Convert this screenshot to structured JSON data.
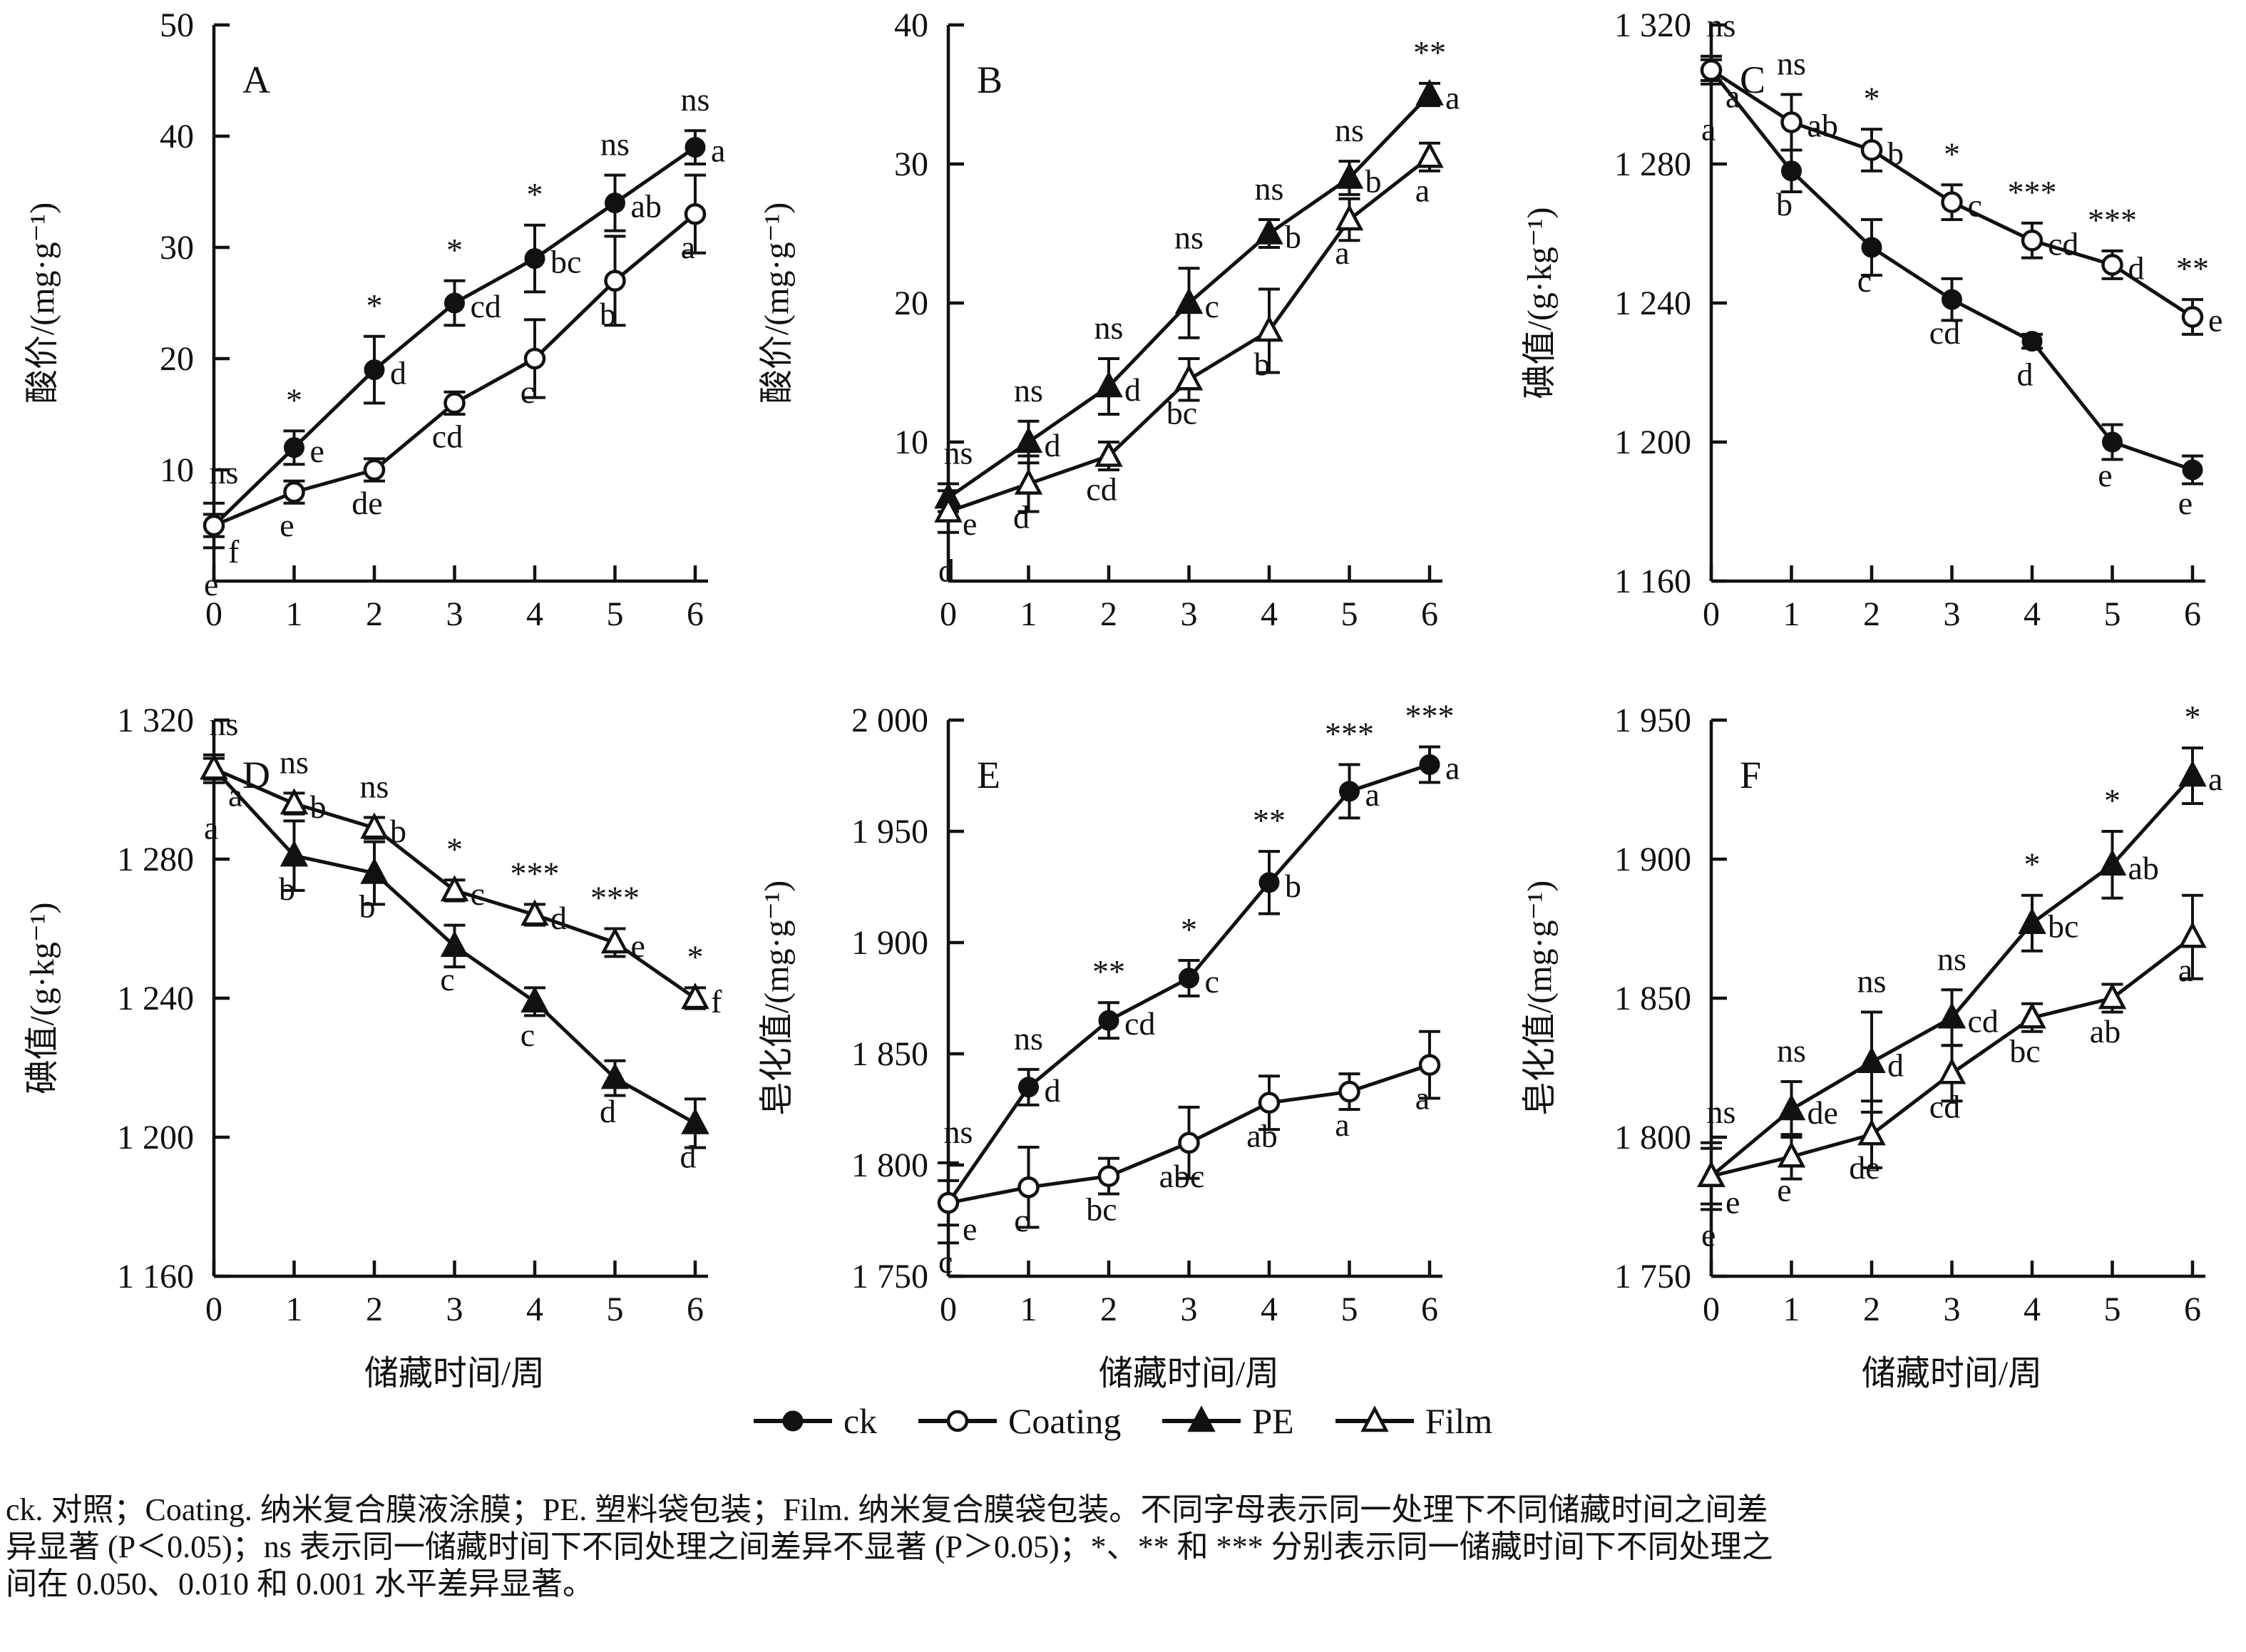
{
  "figure": {
    "x_axis_label": "储藏时间/周",
    "x_ticks": [
      "0",
      "1",
      "2",
      "3",
      "4",
      "5",
      "6"
    ],
    "legend": [
      {
        "label": "ck",
        "marker": "filled-circle"
      },
      {
        "label": "Coating",
        "marker": "open-circle"
      },
      {
        "label": "PE",
        "marker": "filled-triangle"
      },
      {
        "label": "Film",
        "marker": "open-triangle"
      }
    ],
    "caption_lines": [
      "ck. 对照；Coating. 纳米复合膜液涂膜；PE. 塑料袋包装；Film. 纳米复合膜袋包装。不同字母表示同一处理下不同储藏时间之间差",
      "异显著 (P＜0.05)；ns 表示同一储藏时间下不同处理之间差异不显著 (P＞0.05)；*、** 和 *** 分别表示同一储藏时间下不同处理之",
      "间在 0.050、0.010 和 0.001 水平差异显著。"
    ]
  },
  "chart_data": [
    {
      "panel": "A",
      "type": "line",
      "ylabel": "酸价/(mg·g⁻¹)",
      "ylim": [
        0,
        50
      ],
      "yticks": [
        10,
        20,
        30,
        40,
        50
      ],
      "ytick_labels": [
        "10",
        "20",
        "30",
        "40",
        "50"
      ],
      "x": [
        0,
        1,
        2,
        3,
        4,
        5,
        6
      ],
      "series": [
        {
          "name": "ck",
          "marker": "filled-circle",
          "values": [
            5,
            12,
            19,
            25,
            29,
            34,
            39
          ],
          "errors": [
            2,
            1.5,
            3,
            2,
            3,
            2.5,
            1.5
          ],
          "letters": [
            "f",
            "e",
            "d",
            "cd",
            "bc",
            "ab",
            "a"
          ]
        },
        {
          "name": "Coating",
          "marker": "open-circle",
          "values": [
            5,
            8,
            10,
            16,
            20,
            27,
            33
          ],
          "errors": [
            1,
            1,
            1,
            1,
            3.5,
            4,
            3.5
          ],
          "letters": [
            "e",
            "e",
            "de",
            "cd",
            "c",
            "b",
            "a"
          ]
        }
      ],
      "significance": [
        "ns",
        "*",
        "*",
        "*",
        "*",
        "ns",
        "ns"
      ]
    },
    {
      "panel": "B",
      "type": "line",
      "ylabel": "酸价/(mg·g⁻¹)",
      "ylim": [
        0,
        40
      ],
      "yticks": [
        10,
        20,
        30,
        40
      ],
      "ytick_labels": [
        "10",
        "20",
        "30",
        "40"
      ],
      "x": [
        0,
        1,
        2,
        3,
        4,
        5,
        6
      ],
      "series": [
        {
          "name": "PE",
          "marker": "filled-triangle",
          "values": [
            6,
            10,
            14,
            20,
            25,
            29,
            35
          ],
          "errors": [
            1,
            1.5,
            2,
            2.5,
            1,
            1.2,
            0.8
          ],
          "letters": [
            "e",
            "d",
            "d",
            "c",
            "b",
            "b",
            "a"
          ]
        },
        {
          "name": "Film",
          "marker": "open-triangle",
          "values": [
            5,
            7,
            9,
            14.5,
            18,
            26,
            30.5
          ],
          "errors": [
            1.5,
            2,
            1,
            1.5,
            3,
            1.5,
            1
          ],
          "letters": [
            "d",
            "d",
            "cd",
            "bc",
            "b",
            "a",
            "a"
          ]
        }
      ],
      "significance": [
        "ns",
        "ns",
        "ns",
        "ns",
        "ns",
        "ns",
        "**"
      ]
    },
    {
      "panel": "C",
      "type": "line",
      "ylabel": "碘值/(g·kg⁻¹)",
      "ylim": [
        1160,
        1320
      ],
      "yticks": [
        1160,
        1200,
        1240,
        1280,
        1320
      ],
      "ytick_labels": [
        "1 160",
        "1 200",
        "1 240",
        "1 280",
        "1 320"
      ],
      "x": [
        0,
        1,
        2,
        3,
        4,
        5,
        6
      ],
      "series": [
        {
          "name": "ck",
          "marker": "filled-circle",
          "values": [
            1307,
            1278,
            1256,
            1241,
            1229,
            1200,
            1192
          ],
          "errors": [
            4,
            6,
            8,
            6,
            2,
            5,
            4
          ],
          "letters": [
            "a",
            "b",
            "c",
            "cd",
            "d",
            "e",
            "e"
          ]
        },
        {
          "name": "Coating",
          "marker": "open-circle",
          "values": [
            1307,
            1292,
            1284,
            1269,
            1258,
            1251,
            1236
          ],
          "errors": [
            3,
            8,
            6,
            5,
            5,
            4,
            5
          ],
          "letters": [
            "a",
            "ab",
            "b",
            "c",
            "cd",
            "d",
            "e"
          ]
        }
      ],
      "significance": [
        "ns",
        "ns",
        "*",
        "*",
        "***",
        "***",
        "**"
      ]
    },
    {
      "panel": "D",
      "type": "line",
      "ylabel": "碘值/(g·kg⁻¹)",
      "ylim": [
        1160,
        1320
      ],
      "yticks": [
        1160,
        1200,
        1240,
        1280,
        1320
      ],
      "ytick_labels": [
        "1 160",
        "1 200",
        "1 240",
        "1 280",
        "1 320"
      ],
      "x": [
        0,
        1,
        2,
        3,
        4,
        5,
        6
      ],
      "series": [
        {
          "name": "PE",
          "marker": "filled-triangle",
          "values": [
            1306,
            1281,
            1276,
            1255,
            1239,
            1217,
            1204
          ],
          "errors": [
            4,
            10,
            9,
            6,
            4,
            5,
            7
          ],
          "letters": [
            "a",
            "b",
            "b",
            "c",
            "c",
            "d",
            "d"
          ]
        },
        {
          "name": "Film",
          "marker": "open-triangle",
          "values": [
            1306,
            1296,
            1289,
            1271,
            1264,
            1256,
            1240
          ],
          "errors": [
            3,
            3,
            3,
            3,
            3,
            4,
            3
          ],
          "letters": [
            "a",
            "b",
            "b",
            "c",
            "d",
            "e",
            "f"
          ]
        }
      ],
      "significance": [
        "ns",
        "ns",
        "ns",
        "*",
        "***",
        "***",
        "*"
      ]
    },
    {
      "panel": "E",
      "type": "line",
      "ylabel": "皂化值/(mg·g⁻¹)",
      "ylim": [
        1750,
        2000
      ],
      "yticks": [
        1750,
        1800,
        1850,
        1900,
        1950,
        2000
      ],
      "ytick_labels": [
        "1 750",
        "1 800",
        "1 850",
        "1 900",
        "1 950",
        "2 000"
      ],
      "x": [
        0,
        1,
        2,
        3,
        4,
        5,
        6
      ],
      "series": [
        {
          "name": "ck",
          "marker": "filled-circle",
          "values": [
            1783,
            1835,
            1865,
            1884,
            1927,
            1968,
            1980
          ],
          "errors": [
            18,
            8,
            8,
            8,
            14,
            12,
            8
          ],
          "letters": [
            "e",
            "d",
            "cd",
            "c",
            "b",
            "a",
            "a"
          ]
        },
        {
          "name": "Coating",
          "marker": "open-circle",
          "values": [
            1783,
            1790,
            1795,
            1810,
            1828,
            1833,
            1845
          ],
          "errors": [
            10,
            18,
            8,
            16,
            12,
            8,
            15
          ],
          "letters": [
            "c",
            "c",
            "bc",
            "abc",
            "ab",
            "a",
            "a"
          ]
        }
      ],
      "significance": [
        "ns",
        "ns",
        "**",
        "*",
        "**",
        "***",
        "***"
      ]
    },
    {
      "panel": "F",
      "type": "line",
      "ylabel": "皂化值/(mg·g⁻¹)",
      "ylim": [
        1750,
        1950
      ],
      "yticks": [
        1750,
        1800,
        1850,
        1900,
        1950
      ],
      "ytick_labels": [
        "1 750",
        "1 800",
        "1 850",
        "1 900",
        "1 950"
      ],
      "x": [
        0,
        1,
        2,
        3,
        4,
        5,
        6
      ],
      "series": [
        {
          "name": "PE",
          "marker": "filled-triangle",
          "values": [
            1786,
            1810,
            1827,
            1843,
            1877,
            1898,
            1930
          ],
          "errors": [
            12,
            10,
            18,
            10,
            10,
            12,
            10
          ],
          "letters": [
            "e",
            "de",
            "d",
            "cd",
            "bc",
            "ab",
            "a"
          ]
        },
        {
          "name": "Film",
          "marker": "open-triangle",
          "values": [
            1786,
            1793,
            1801,
            1823,
            1843,
            1850,
            1872
          ],
          "errors": [
            10,
            8,
            12,
            10,
            5,
            5,
            15
          ],
          "letters": [
            "e",
            "e",
            "de",
            "cd",
            "bc",
            "ab",
            "a"
          ]
        }
      ],
      "significance": [
        "ns",
        "ns",
        "ns",
        "ns",
        "*",
        "*",
        "*"
      ]
    }
  ]
}
